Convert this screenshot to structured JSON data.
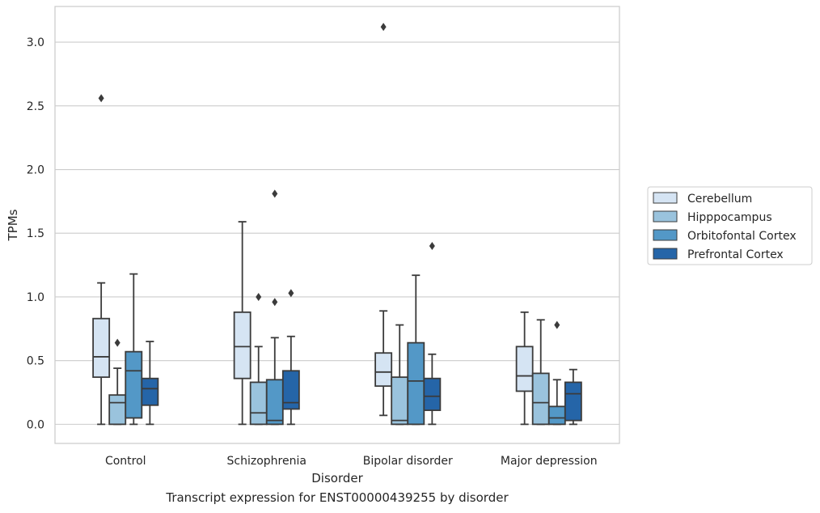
{
  "caption": "Transcript expression for ENST00000439255 by disorder",
  "chart_data": {
    "type": "boxplot",
    "xlabel": "Disorder",
    "ylabel": "TPMs",
    "ylim": [
      -0.15,
      3.28
    ],
    "yticks": [
      0.0,
      0.5,
      1.0,
      1.5,
      2.0,
      2.5,
      3.0
    ],
    "ytick_labels": [
      "0.0",
      "0.5",
      "1.0",
      "1.5",
      "2.0",
      "2.5",
      "3.0"
    ],
    "grid": "horizontal",
    "legend_position": "right",
    "categories": [
      "Control",
      "Schizophrenia",
      "Bipolar disorder",
      "Major depression"
    ],
    "series": [
      {
        "name": "Cerebellum",
        "color": "#d5e4f3",
        "boxes": [
          {
            "whislo": 0.0,
            "q1": 0.37,
            "med": 0.53,
            "q3": 0.83,
            "whishi": 1.11,
            "fliers": [
              2.56
            ]
          },
          {
            "whislo": 0.0,
            "q1": 0.36,
            "med": 0.61,
            "q3": 0.88,
            "whishi": 1.59,
            "fliers": []
          },
          {
            "whislo": 0.07,
            "q1": 0.3,
            "med": 0.41,
            "q3": 0.56,
            "whishi": 0.89,
            "fliers": [
              3.12
            ]
          },
          {
            "whislo": 0.0,
            "q1": 0.26,
            "med": 0.38,
            "q3": 0.61,
            "whishi": 0.88,
            "fliers": []
          }
        ]
      },
      {
        "name": "Hipppocampus",
        "color": "#9ac3dd",
        "boxes": [
          {
            "whislo": 0.0,
            "q1": 0.0,
            "med": 0.17,
            "q3": 0.23,
            "whishi": 0.44,
            "fliers": [
              0.64
            ]
          },
          {
            "whislo": 0.0,
            "q1": 0.0,
            "med": 0.09,
            "q3": 0.33,
            "whishi": 0.61,
            "fliers": [
              1.0
            ]
          },
          {
            "whislo": 0.0,
            "q1": 0.0,
            "med": 0.03,
            "q3": 0.37,
            "whishi": 0.78,
            "fliers": []
          },
          {
            "whislo": 0.0,
            "q1": 0.0,
            "med": 0.17,
            "q3": 0.4,
            "whishi": 0.82,
            "fliers": []
          }
        ]
      },
      {
        "name": "Orbitofontal Cortex",
        "color": "#5398c7",
        "boxes": [
          {
            "whislo": 0.0,
            "q1": 0.05,
            "med": 0.42,
            "q3": 0.57,
            "whishi": 1.18,
            "fliers": []
          },
          {
            "whislo": 0.0,
            "q1": 0.0,
            "med": 0.03,
            "q3": 0.35,
            "whishi": 0.68,
            "fliers": [
              0.96,
              1.81
            ]
          },
          {
            "whislo": 0.0,
            "q1": 0.0,
            "med": 0.34,
            "q3": 0.64,
            "whishi": 1.17,
            "fliers": []
          },
          {
            "whislo": 0.0,
            "q1": 0.0,
            "med": 0.05,
            "q3": 0.14,
            "whishi": 0.35,
            "fliers": [
              0.78
            ]
          }
        ]
      },
      {
        "name": "Prefrontal Cortex",
        "color": "#2565a8",
        "boxes": [
          {
            "whislo": 0.0,
            "q1": 0.15,
            "med": 0.28,
            "q3": 0.36,
            "whishi": 0.65,
            "fliers": []
          },
          {
            "whislo": 0.0,
            "q1": 0.12,
            "med": 0.17,
            "q3": 0.42,
            "whishi": 0.69,
            "fliers": [
              1.03
            ]
          },
          {
            "whislo": 0.0,
            "q1": 0.11,
            "med": 0.22,
            "q3": 0.36,
            "whishi": 0.55,
            "fliers": [
              1.4
            ]
          },
          {
            "whislo": 0.0,
            "q1": 0.03,
            "med": 0.24,
            "q3": 0.33,
            "whishi": 0.43,
            "fliers": []
          }
        ]
      }
    ]
  }
}
